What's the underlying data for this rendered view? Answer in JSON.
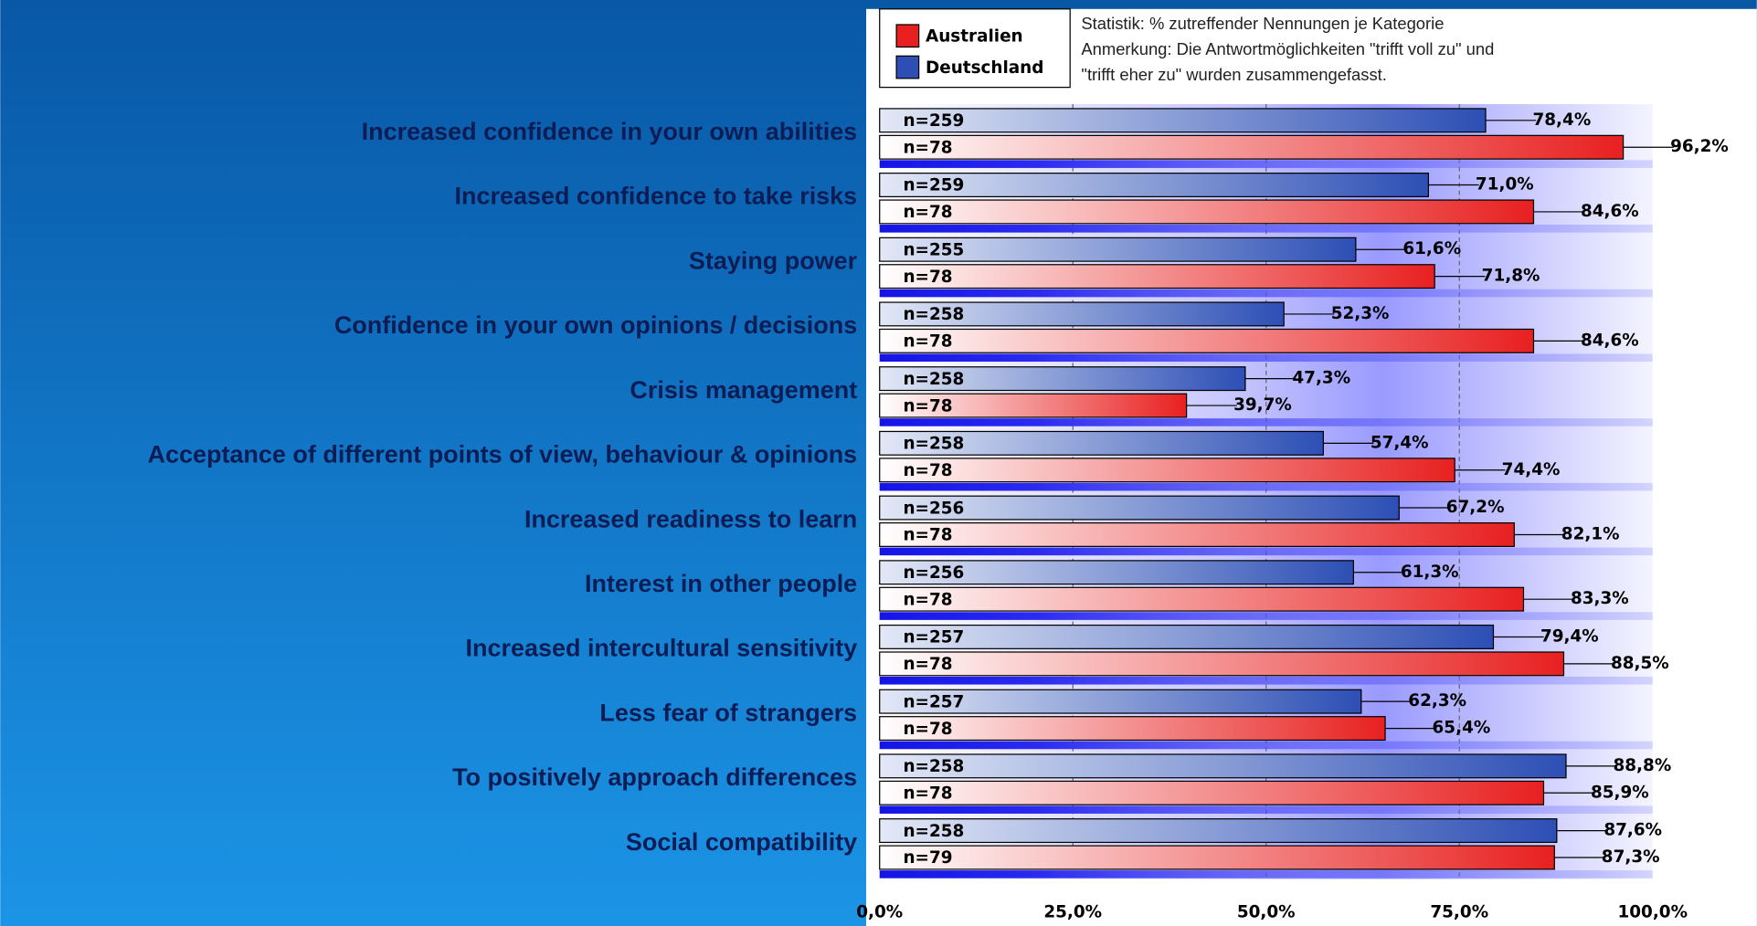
{
  "chart_data": {
    "type": "bar",
    "orientation": "horizontal",
    "notes": [
      "Statistik: % zutreffender Nennungen je Kategorie",
      "Anmerkung: Die Antwortmöglichkeiten \"trifft voll zu\" und",
      "\"trifft eher zu\" wurden zusammengefasst."
    ],
    "categories": [
      "Increased confidence in your own abilities",
      "Increased confidence to take risks",
      "Staying power",
      "Confidence in your own opinions / decisions",
      "Crisis management",
      "Acceptance of different points of view, behaviour & opinions",
      "Increased readiness to learn",
      "Interest in other people",
      "Increased intercultural sensitivity",
      "Less fear of strangers",
      "To positively approach differences",
      "Social compatibility"
    ],
    "series": [
      {
        "name": "Australien",
        "color": "#e82020",
        "values": [
          96.2,
          84.6,
          71.8,
          84.6,
          39.7,
          74.4,
          82.1,
          83.3,
          88.5,
          65.4,
          85.9,
          87.3
        ],
        "value_labels": [
          "96,2%",
          "84,6%",
          "71,8%",
          "84,6%",
          "39,7%",
          "74,4%",
          "82,1%",
          "83,3%",
          "88,5%",
          "65,4%",
          "85,9%",
          "87,3%"
        ],
        "n": [
          "n=78",
          "n=78",
          "n=78",
          "n=78",
          "n=78",
          "n=78",
          "n=78",
          "n=78",
          "n=78",
          "n=78",
          "n=78",
          "n=79"
        ]
      },
      {
        "name": "Deutschland",
        "color": "#2d4fb5",
        "values": [
          78.4,
          71.0,
          61.6,
          52.3,
          47.3,
          57.4,
          67.2,
          61.3,
          79.4,
          62.3,
          88.8,
          87.6
        ],
        "value_labels": [
          "78,4%",
          "71,0%",
          "61,6%",
          "52,3%",
          "47,3%",
          "57,4%",
          "67,2%",
          "61,3%",
          "79,4%",
          "62,3%",
          "88,8%",
          "87,6%"
        ],
        "n": [
          "n=259",
          "n=259",
          "n=255",
          "n=258",
          "n=258",
          "n=258",
          "n=256",
          "n=256",
          "n=257",
          "n=257",
          "n=258",
          "n=258"
        ]
      }
    ],
    "xlim": [
      0,
      100
    ],
    "xticks": [
      {
        "value": 0,
        "label": "0,0%"
      },
      {
        "value": 25,
        "label": "25,0%"
      },
      {
        "value": 50,
        "label": "50,0%"
      },
      {
        "value": 75,
        "label": "75,0%"
      },
      {
        "value": 100,
        "label": "100,0%"
      }
    ],
    "grid": true
  }
}
